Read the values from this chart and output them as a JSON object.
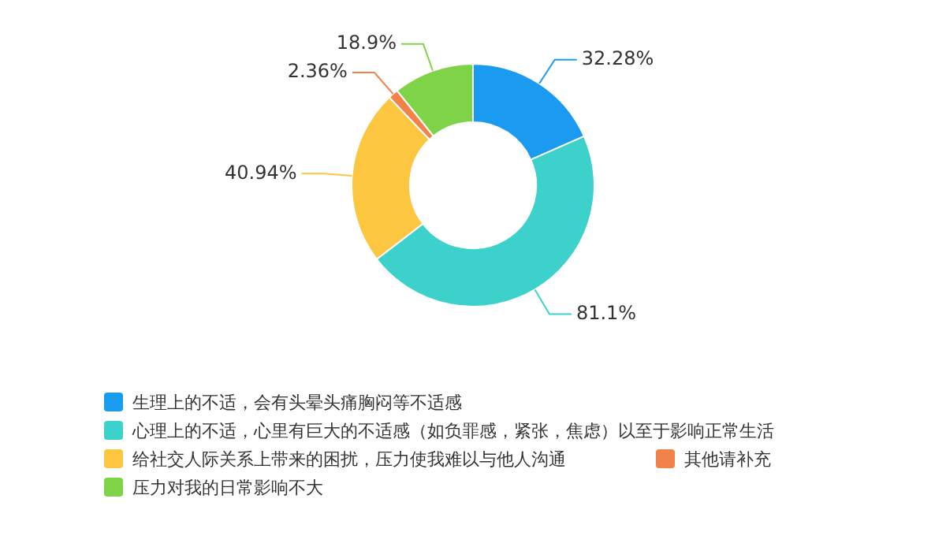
{
  "chart_data": {
    "type": "donut",
    "categories": [
      "生理上的不适，会有头晕头痛胸闷等不适感",
      "心理上的不适，心里有巨大的不适感（如负罪感，紧张，焦虑）以至于影响正常生活",
      "给社交人际关系上带来的困扰，压力使我难以与他人沟通",
      "其他请补充",
      "压力对我的日常影响不大"
    ],
    "values": [
      32.28,
      81.1,
      40.94,
      2.36,
      18.9
    ],
    "colors": [
      "#1a9bf0",
      "#3dd1cb",
      "#fcc640",
      "#f0824a",
      "#7ed347"
    ],
    "value_labels": [
      "32.28%",
      "81.1%",
      "40.94%",
      "2.36%",
      "18.9%"
    ],
    "legend": "bottom"
  }
}
